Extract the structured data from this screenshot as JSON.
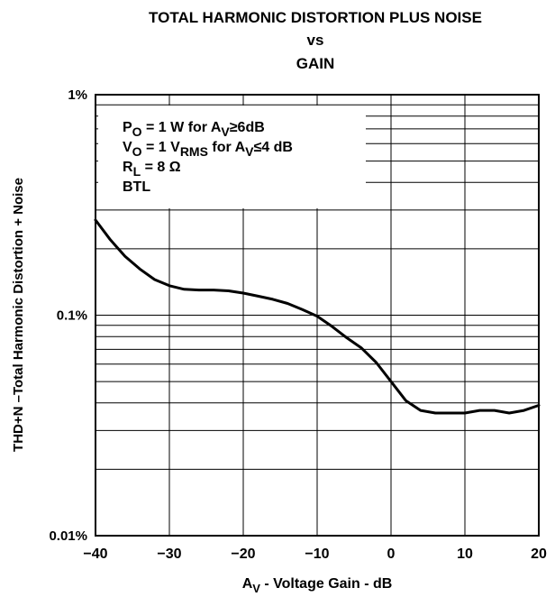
{
  "chart_data": {
    "type": "line",
    "title_lines": [
      "TOTAL HARMONIC DISTORTION PLUS NOISE",
      "vs",
      "GAIN"
    ],
    "xlabel": "A_V - Voltage Gain - dB",
    "ylabel": "THD+N –Total Harmonic Distortion + Noise",
    "xlim": [
      -40,
      20
    ],
    "ylim": [
      0.01,
      1
    ],
    "yscale": "log",
    "grid": true,
    "xticks": [
      -40,
      -30,
      -20,
      -10,
      0,
      10,
      20
    ],
    "xtick_labels": [
      "−40",
      "−30",
      "−20",
      "−10",
      "0",
      "10",
      "20"
    ],
    "ytick_labels": [
      {
        "value": 1,
        "label": "1%"
      },
      {
        "value": 0.1,
        "label": "0.1%"
      },
      {
        "value": 0.01,
        "label": "0.01%"
      }
    ],
    "annotations": [
      {
        "parts": [
          [
            "P",
            ""
          ],
          [
            "O",
            "sub"
          ],
          [
            " = 1 W for A",
            ""
          ],
          [
            "V",
            "sub"
          ],
          [
            "≥6dB",
            ""
          ]
        ]
      },
      {
        "parts": [
          [
            "V",
            ""
          ],
          [
            "O",
            "sub"
          ],
          [
            " = 1 V",
            ""
          ],
          [
            "RMS",
            "sub"
          ],
          [
            " for A",
            ""
          ],
          [
            "V",
            "sub"
          ],
          [
            "≤4 dB",
            ""
          ]
        ]
      },
      {
        "parts": [
          [
            "R",
            ""
          ],
          [
            "L",
            "sub"
          ],
          [
            " = 8 Ω",
            ""
          ]
        ]
      },
      {
        "parts": [
          [
            "BTL",
            ""
          ]
        ]
      }
    ],
    "series": [
      {
        "x": [
          -40,
          -38,
          -36,
          -34,
          -32,
          -30,
          -28,
          -26,
          -24,
          -22,
          -20,
          -18,
          -16,
          -14,
          -12,
          -10,
          -8,
          -6,
          -4,
          -2,
          0,
          2,
          4,
          6,
          8,
          10,
          12,
          14,
          16,
          18,
          20
        ],
        "values": [
          0.27,
          0.22,
          0.185,
          0.162,
          0.145,
          0.136,
          0.131,
          0.13,
          0.13,
          0.129,
          0.126,
          0.122,
          0.118,
          0.113,
          0.106,
          0.099,
          0.089,
          0.079,
          0.071,
          0.061,
          0.05,
          0.041,
          0.037,
          0.036,
          0.036,
          0.036,
          0.037,
          0.037,
          0.036,
          0.037,
          0.039
        ]
      }
    ]
  }
}
